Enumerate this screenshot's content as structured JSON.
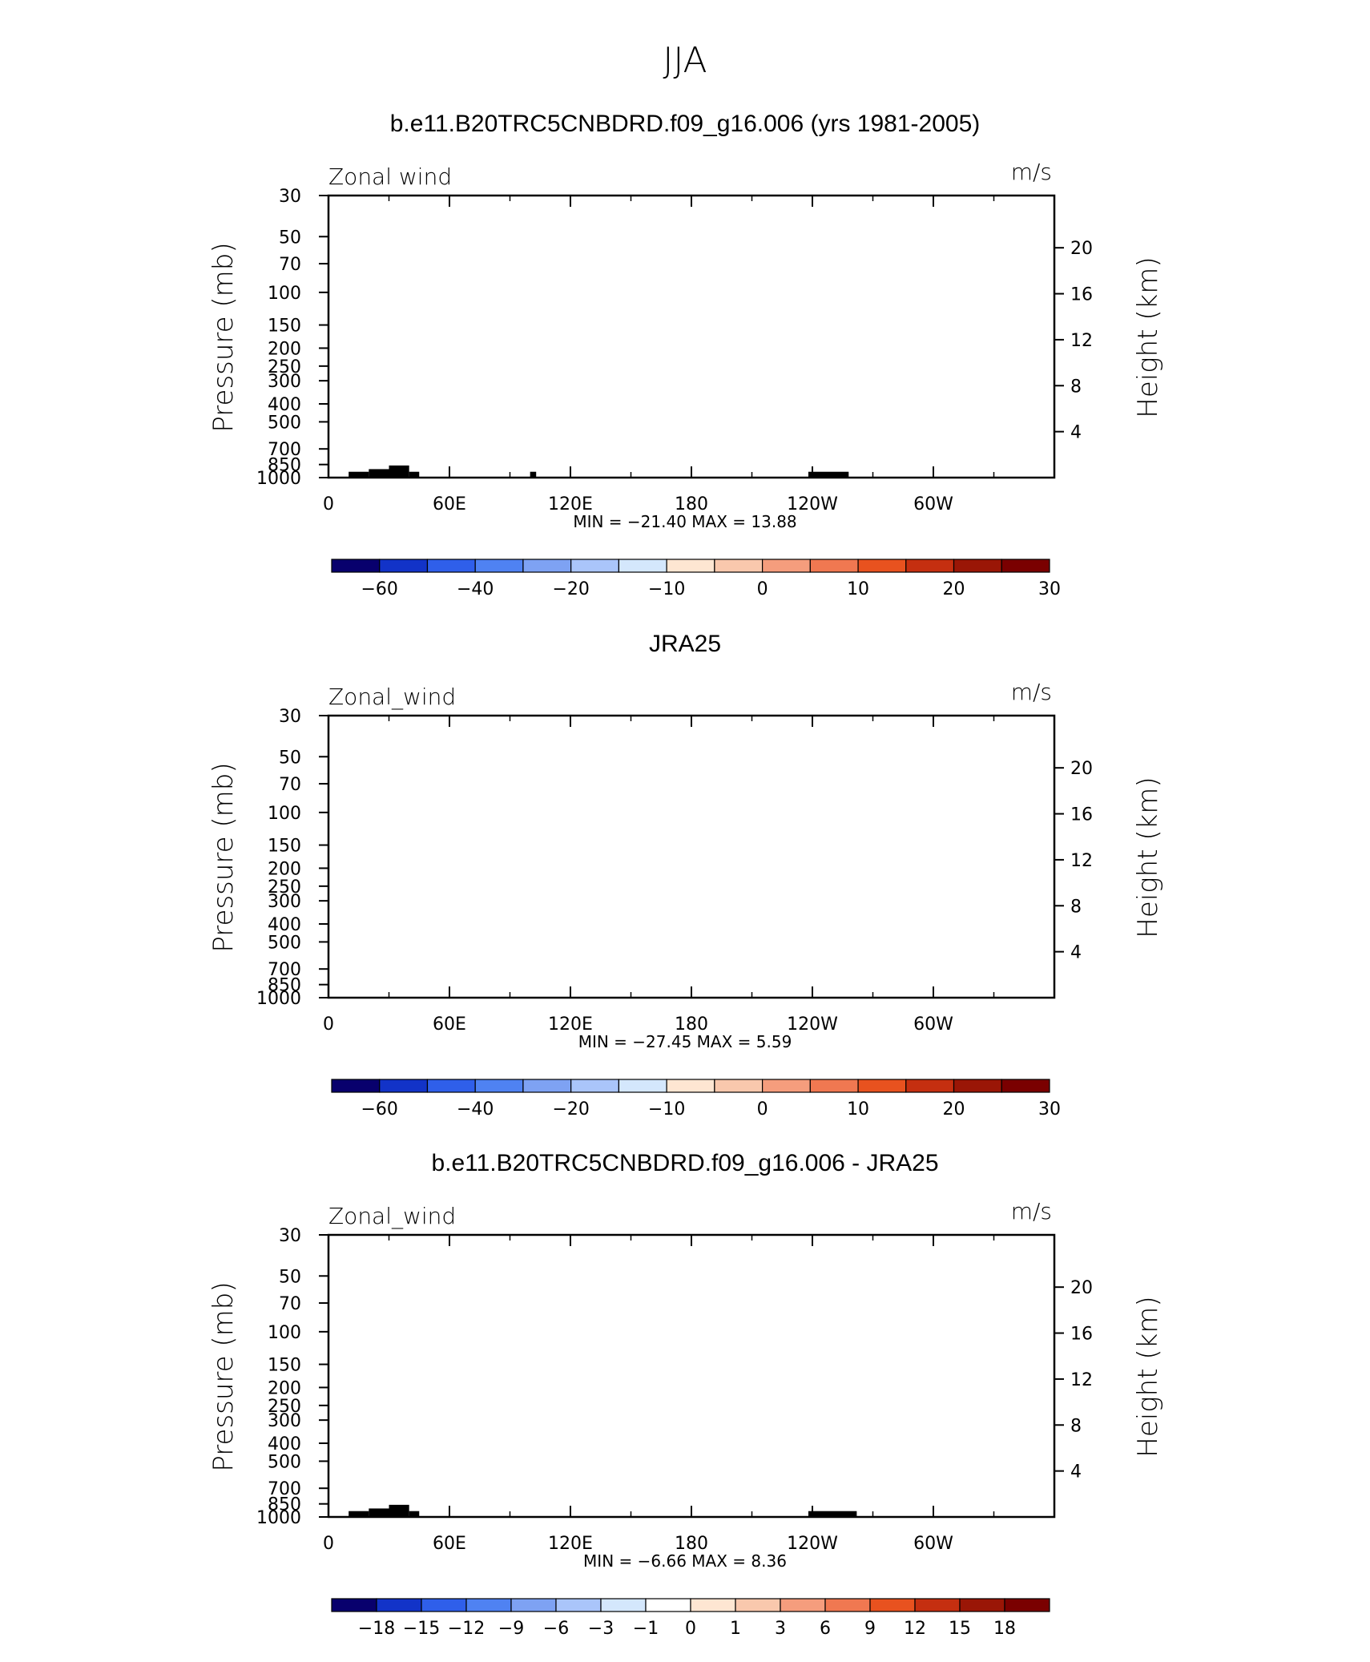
{
  "figure": {
    "season_title": "JJA"
  },
  "chart_data": [
    {
      "type": "heatmap",
      "title": "b.e11.B20TRC5CNBDRD.f09_g16.006 (yrs 1981-2005)",
      "left_string": "Zonal wind",
      "right_string": "m/s",
      "ylabel": "Pressure (mb)",
      "ylabel_right": "Height (km)",
      "x_ticks": [
        "0",
        "60E",
        "120E",
        "180",
        "120W",
        "60W"
      ],
      "y_ticks": [
        "30",
        "50",
        "70",
        "100",
        "150",
        "200",
        "250",
        "300",
        "400",
        "500",
        "700",
        "850",
        "1000"
      ],
      "height_ticks": [
        "20",
        "16",
        "12",
        "8",
        "4"
      ],
      "min_max": {
        "min_label": "MIN =",
        "min_value": "-21.40",
        "max_label": "MAX =",
        "max_value": "13.88"
      },
      "stats_text": "MIN = −21.40 MAX = 13.88",
      "colorbar": {
        "labels": [
          "−60",
          "−40",
          "−20",
          "−10",
          "0",
          "10",
          "20",
          "30"
        ],
        "colors": [
          "#08006d",
          "#1233c8",
          "#2f5fea",
          "#4f82f2",
          "#7ea2f3",
          "#aac5fa",
          "#d4e7fc",
          "#fee6d2",
          "#f9c8ad",
          "#f59d7d",
          "#f07851",
          "#e8521f",
          "#c52f10",
          "#9a1606",
          "#7a0000"
        ]
      }
    },
    {
      "type": "heatmap",
      "title": "JRA25",
      "left_string": "Zonal_wind",
      "right_string": "m/s",
      "ylabel": "Pressure (mb)",
      "ylabel_right": "Height (km)",
      "x_ticks": [
        "0",
        "60E",
        "120E",
        "180",
        "120W",
        "60W"
      ],
      "y_ticks": [
        "30",
        "50",
        "70",
        "100",
        "150",
        "200",
        "250",
        "300",
        "400",
        "500",
        "700",
        "850",
        "1000"
      ],
      "height_ticks": [
        "20",
        "16",
        "12",
        "8",
        "4"
      ],
      "min_max": {
        "min_label": "MIN =",
        "min_value": "-27.45",
        "max_label": "MAX =",
        "max_value": "5.59"
      },
      "stats_text": "MIN = −27.45 MAX = 5.59",
      "colorbar": {
        "labels": [
          "−60",
          "−40",
          "−20",
          "−10",
          "0",
          "10",
          "20",
          "30"
        ],
        "colors": [
          "#08006d",
          "#1233c8",
          "#2f5fea",
          "#4f82f2",
          "#7ea2f3",
          "#aac5fa",
          "#d4e7fc",
          "#fee6d2",
          "#f9c8ad",
          "#f59d7d",
          "#f07851",
          "#e8521f",
          "#c52f10",
          "#9a1606",
          "#7a0000"
        ]
      }
    },
    {
      "type": "heatmap",
      "title": "b.e11.B20TRC5CNBDRD.f09_g16.006 - JRA25",
      "left_string": "Zonal_wind",
      "right_string": "m/s",
      "ylabel": "Pressure (mb)",
      "ylabel_right": "Height (km)",
      "x_ticks": [
        "0",
        "60E",
        "120E",
        "180",
        "120W",
        "60W"
      ],
      "y_ticks": [
        "30",
        "50",
        "70",
        "100",
        "150",
        "200",
        "250",
        "300",
        "400",
        "500",
        "700",
        "850",
        "1000"
      ],
      "height_ticks": [
        "20",
        "16",
        "12",
        "8",
        "4"
      ],
      "min_max": {
        "min_label": "MIN =",
        "min_value": "-6.66",
        "max_label": "MAX =",
        "max_value": "8.36"
      },
      "stats_text": "MIN = −6.66 MAX = 8.36",
      "colorbar": {
        "labels": [
          "−18",
          "−15",
          "−12",
          "−9",
          "−6",
          "−3",
          "−1",
          "0",
          "1",
          "3",
          "6",
          "9",
          "12",
          "15",
          "18"
        ],
        "colors": [
          "#08006d",
          "#1233c8",
          "#2f5fea",
          "#4f82f2",
          "#7ea2f3",
          "#aac5fa",
          "#d4e7fc",
          "#ffffff",
          "#fee6d2",
          "#f9c8ad",
          "#f59d7d",
          "#f07851",
          "#e8521f",
          "#c52f10",
          "#9a1606",
          "#7a0000"
        ]
      }
    }
  ]
}
